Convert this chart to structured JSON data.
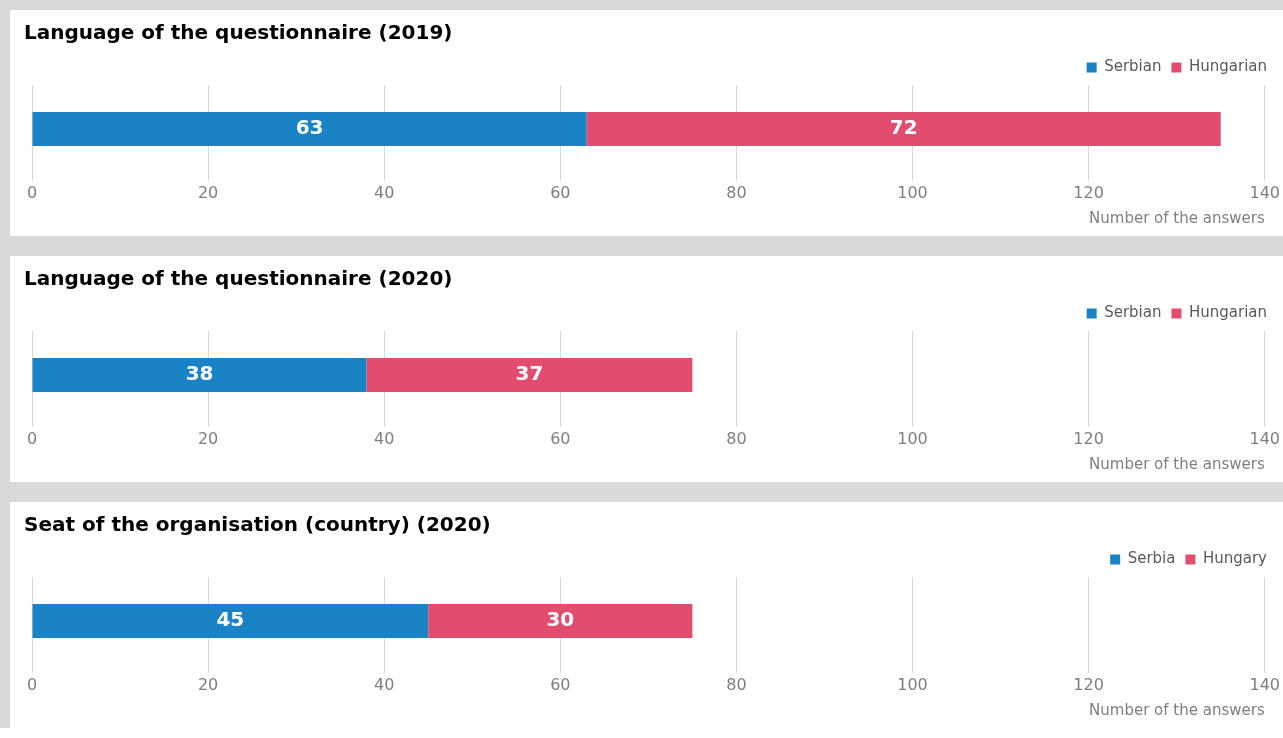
{
  "chart_data": [
    {
      "type": "bar",
      "orientation": "horizontal",
      "stacked": true,
      "title": "Language of the questionnaire (2019)",
      "xlabel": "Number of the answers",
      "categories": [
        null
      ],
      "series": [
        {
          "name": "Serbian",
          "color": "#1a83c6",
          "values": [
            63
          ]
        },
        {
          "name": "Hungarian",
          "color": "#e24c6e",
          "values": [
            72
          ]
        }
      ],
      "xlim": [
        0,
        140
      ],
      "xticks": [
        0,
        20,
        40,
        60,
        80,
        100,
        120,
        140
      ],
      "grid": "x",
      "legend": "top right",
      "data_labels": true
    },
    {
      "type": "bar",
      "orientation": "horizontal",
      "stacked": true,
      "title": "Language of the questionnaire (2020)",
      "xlabel": "Number of the answers",
      "categories": [
        null
      ],
      "series": [
        {
          "name": "Serbian",
          "color": "#1a83c6",
          "values": [
            38
          ]
        },
        {
          "name": "Hungarian",
          "color": "#e24c6e",
          "values": [
            37
          ]
        }
      ],
      "xlim": [
        0,
        140
      ],
      "xticks": [
        0,
        20,
        40,
        60,
        80,
        100,
        120,
        140
      ],
      "grid": "x",
      "legend": "top right",
      "data_labels": true
    },
    {
      "type": "bar",
      "orientation": "horizontal",
      "stacked": true,
      "title": "Seat of the organisation (country) (2020)",
      "xlabel": "Number of the answers",
      "categories": [
        null
      ],
      "series": [
        {
          "name": "Serbia",
          "color": "#1a83c6",
          "values": [
            45
          ]
        },
        {
          "name": "Hungary",
          "color": "#e24c6e",
          "values": [
            30
          ]
        }
      ],
      "xlim": [
        0,
        140
      ],
      "xticks": [
        0,
        20,
        40,
        60,
        80,
        100,
        120,
        140
      ],
      "grid": "x",
      "legend": "top right",
      "data_labels": true
    }
  ]
}
